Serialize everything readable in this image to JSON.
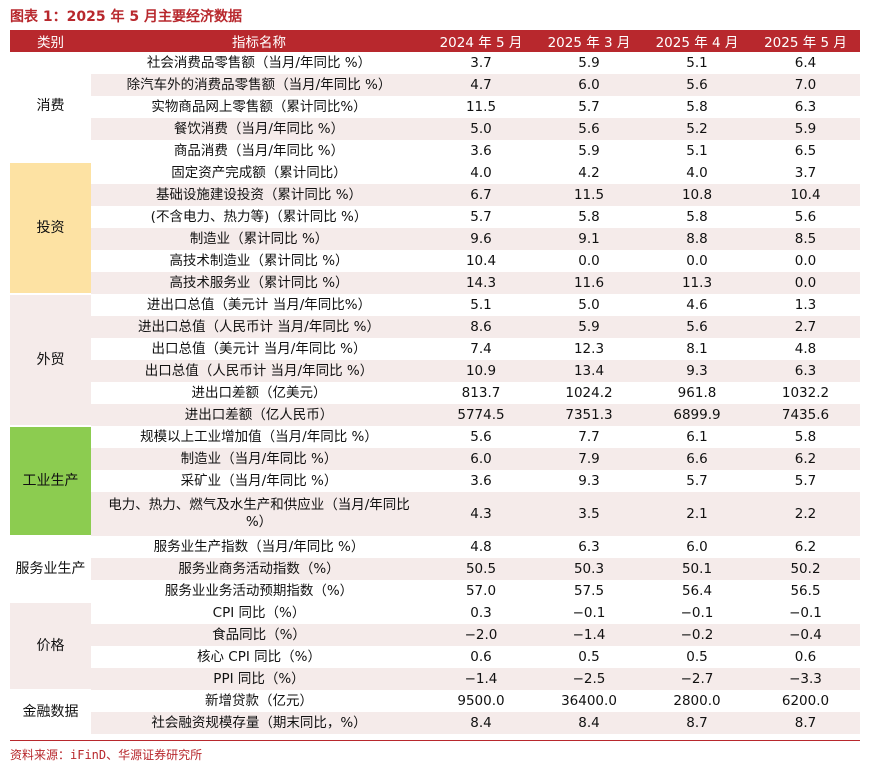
{
  "title": "图表 1：2025 年 5 月主要经济数据",
  "header": {
    "category": "类别",
    "indicator": "指标名称",
    "col1": "2024 年 5 月",
    "col2": "2025 年 3 月",
    "col3": "2025 年 4 月",
    "col4": "2025 年 5 月"
  },
  "groups": [
    {
      "category": "消费",
      "color": "#ffffff",
      "rows": [
        {
          "name": "社会消费品零售额（当月/年同比 %）",
          "v": [
            "3.7",
            "5.9",
            "5.1",
            "6.4"
          ]
        },
        {
          "name": "除汽车外的消费品零售额（当月/年同比 %）",
          "v": [
            "4.7",
            "6.0",
            "5.6",
            "7.0"
          ]
        },
        {
          "name": "实物商品网上零售额（累计同比%）",
          "v": [
            "11.5",
            "5.7",
            "5.8",
            "6.3"
          ]
        },
        {
          "name": "餐饮消费（当月/年同比 %）",
          "v": [
            "5.0",
            "5.6",
            "5.2",
            "5.9"
          ]
        },
        {
          "name": "商品消费（当月/年同比 %）",
          "v": [
            "3.6",
            "5.9",
            "5.1",
            "6.5"
          ]
        }
      ]
    },
    {
      "category": "投资",
      "color": "#fde2a3",
      "rows": [
        {
          "name": "固定资产完成额（累计同比）",
          "v": [
            "4.0",
            "4.2",
            "4.0",
            "3.7"
          ]
        },
        {
          "name": "基础设施建设投资（累计同比 %）",
          "v": [
            "6.7",
            "11.5",
            "10.8",
            "10.4"
          ]
        },
        {
          "name": "(不含电力、热力等)（累计同比 %）",
          "v": [
            "5.7",
            "5.8",
            "5.8",
            "5.6"
          ]
        },
        {
          "name": "制造业（累计同比 %）",
          "v": [
            "9.6",
            "9.1",
            "8.8",
            "8.5"
          ]
        },
        {
          "name": "高技术制造业（累计同比 %）",
          "v": [
            "10.4",
            "0.0",
            "0.0",
            "0.0"
          ]
        },
        {
          "name": "高技术服务业（累计同比 %）",
          "v": [
            "14.3",
            "11.6",
            "11.3",
            "0.0"
          ]
        }
      ]
    },
    {
      "category": "外贸",
      "color": "#f5ebea",
      "rows": [
        {
          "name": "进出口总值（美元计 当月/年同比%）",
          "v": [
            "5.1",
            "5.0",
            "4.6",
            "1.3"
          ]
        },
        {
          "name": "进出口总值（人民币计 当月/年同比 %）",
          "v": [
            "8.6",
            "5.9",
            "5.6",
            "2.7"
          ]
        },
        {
          "name": "出口总值（美元计 当月/年同比 %）",
          "v": [
            "7.4",
            "12.3",
            "8.1",
            "4.8"
          ]
        },
        {
          "name": "出口总值（人民币计 当月/年同比 %）",
          "v": [
            "10.9",
            "13.4",
            "9.3",
            "6.3"
          ]
        },
        {
          "name": "进出口差额（亿美元）",
          "v": [
            "813.7",
            "1024.2",
            "961.8",
            "1032.2"
          ]
        },
        {
          "name": "进出口差额（亿人民币）",
          "v": [
            "5774.5",
            "7351.3",
            "6899.9",
            "7435.6"
          ]
        }
      ]
    },
    {
      "category": "工业生产",
      "color": "#8ccc50",
      "rows": [
        {
          "name": "规模以上工业增加值（当月/年同比 %）",
          "v": [
            "5.6",
            "7.7",
            "6.1",
            "5.8"
          ]
        },
        {
          "name": "制造业（当月/年同比 %）",
          "v": [
            "6.0",
            "7.9",
            "6.6",
            "6.2"
          ]
        },
        {
          "name": "采矿业（当月/年同比 %）",
          "v": [
            "3.6",
            "9.3",
            "5.7",
            "5.7"
          ]
        },
        {
          "name": "电力、热力、燃气及水生产和供应业（当月/年同比 %）",
          "v": [
            "4.3",
            "3.5",
            "2.1",
            "2.2"
          ],
          "tall": true
        }
      ]
    },
    {
      "category": "服务业生产",
      "color": "#ffffff",
      "rows": [
        {
          "name": "服务业生产指数（当月/年同比 %）",
          "v": [
            "4.8",
            "6.3",
            "6.0",
            "6.2"
          ]
        },
        {
          "name": "服务业商务活动指数（%）",
          "v": [
            "50.5",
            "50.3",
            "50.1",
            "50.2"
          ]
        },
        {
          "name": "服务业业务活动预期指数（%）",
          "v": [
            "57.0",
            "57.5",
            "56.4",
            "56.5"
          ]
        }
      ]
    },
    {
      "category": "价格",
      "color": "#f5ebea",
      "rows": [
        {
          "name": "CPI 同比（%）",
          "v": [
            "0.3",
            "−0.1",
            "−0.1",
            "−0.1"
          ]
        },
        {
          "name": "食品同比（%）",
          "v": [
            "−2.0",
            "−1.4",
            "−0.2",
            "−0.4"
          ]
        },
        {
          "name": "核心 CPI 同比（%）",
          "v": [
            "0.6",
            "0.5",
            "0.5",
            "0.6"
          ]
        },
        {
          "name": "PPI 同比（%）",
          "v": [
            "−1.4",
            "−2.5",
            "−2.7",
            "−3.3"
          ]
        }
      ]
    },
    {
      "category": "金融数据",
      "color": "#ffffff",
      "rows": [
        {
          "name": "新增贷款（亿元）",
          "v": [
            "9500.0",
            "36400.0",
            "2800.0",
            "6200.0"
          ]
        },
        {
          "name": "社会融资规模存量（期末同比，%）",
          "v": [
            "8.4",
            "8.4",
            "8.7",
            "8.7"
          ]
        }
      ]
    }
  ],
  "source": "资料来源：iFinD、华源证券研究所"
}
